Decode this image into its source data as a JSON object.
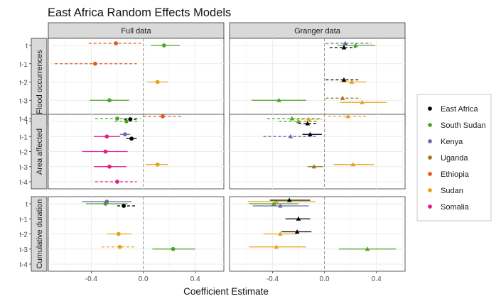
{
  "chart_data": {
    "type": "scatter",
    "title": "East Africa Random Effects Models",
    "xlabel": "Coefficient Estimate",
    "xlim": [
      -0.73,
      0.62
    ],
    "x_ticks": [
      -0.4,
      0.0,
      0.4
    ],
    "x_tick_labels": [
      "-0.4",
      "0.0",
      "0.4"
    ],
    "reference_line_x": 0,
    "grid": true,
    "legend_position": "right",
    "columns": [
      "Full data",
      "Granger data"
    ],
    "rows": [
      "Flood occurrences",
      "Area affected",
      "Cumulative duration"
    ],
    "y_categories": [
      "t",
      "t-1",
      "t-2",
      "t-3",
      "t-4"
    ],
    "legend": [
      {
        "name": "East Africa",
        "color": "#000000"
      },
      {
        "name": "South Sudan",
        "color": "#4da327"
      },
      {
        "name": "Kenya",
        "color": "#7065b0"
      },
      {
        "name": "Uganda",
        "color": "#a0722a"
      },
      {
        "name": "Ethiopia",
        "color": "#e25b1c"
      },
      {
        "name": "Sudan",
        "color": "#e6a21f"
      },
      {
        "name": "Somalia",
        "color": "#e21d88"
      }
    ],
    "panels": [
      {
        "row": 0,
        "col": 0,
        "points": [
          {
            "region": "South Sudan",
            "y": "t",
            "est": 0.16,
            "lo": 0.06,
            "hi": 0.28,
            "shape": "circle",
            "line": "solid"
          },
          {
            "region": "Ethiopia",
            "y": "t",
            "est": -0.21,
            "lo": -0.42,
            "hi": -0.02,
            "shape": "circle",
            "line": "dashed"
          },
          {
            "region": "Ethiopia",
            "y": "t-1",
            "est": -0.37,
            "lo": -0.68,
            "hi": -0.05,
            "shape": "circle",
            "line": "dashed"
          },
          {
            "region": "Sudan",
            "y": "t-2",
            "est": 0.11,
            "lo": 0.03,
            "hi": 0.19,
            "shape": "circle",
            "line": "solid"
          },
          {
            "region": "South Sudan",
            "y": "t-3",
            "est": -0.26,
            "lo": -0.41,
            "hi": -0.11,
            "shape": "circle",
            "line": "solid"
          },
          {
            "region": "South Sudan",
            "y": "t-4",
            "est": -0.2,
            "lo": -0.37,
            "hi": -0.02,
            "shape": "circle",
            "line": "dashed"
          },
          {
            "region": "Ethiopia",
            "y": "t-4",
            "est": 0.15,
            "lo": 0.0,
            "hi": 0.29,
            "shape": "circle",
            "line": "dashed"
          }
        ]
      },
      {
        "row": 0,
        "col": 1,
        "points": [
          {
            "region": "South Sudan",
            "y": "t",
            "est": 0.24,
            "lo": 0.1,
            "hi": 0.39,
            "shape": "triangle",
            "line": "solid"
          },
          {
            "region": "Kenya",
            "y": "t",
            "est": 0.16,
            "lo": 0.01,
            "hi": 0.36,
            "shape": "triangle",
            "line": "dashed"
          },
          {
            "region": "East Africa",
            "y": "t",
            "est": 0.15,
            "lo": 0.04,
            "hi": 0.24,
            "shape": "triangle",
            "line": "dashed"
          },
          {
            "region": "Sudan",
            "y": "t-2",
            "est": 0.21,
            "lo": 0.12,
            "hi": 0.32,
            "shape": "triangle",
            "line": "solid"
          },
          {
            "region": "East Africa",
            "y": "t-2",
            "est": 0.15,
            "lo": 0.01,
            "hi": 0.26,
            "shape": "triangle",
            "line": "dashed"
          },
          {
            "region": "South Sudan",
            "y": "t-3",
            "est": -0.35,
            "lo": -0.56,
            "hi": -0.14,
            "shape": "triangle",
            "line": "solid"
          },
          {
            "region": "Uganda",
            "y": "t-3",
            "est": 0.14,
            "lo": 0.01,
            "hi": 0.28,
            "shape": "triangle",
            "line": "dashed"
          },
          {
            "region": "Sudan",
            "y": "t-3",
            "est": 0.29,
            "lo": 0.12,
            "hi": 0.48,
            "shape": "triangle",
            "line": "solid"
          },
          {
            "region": "South Sudan",
            "y": "t-4",
            "est": -0.25,
            "lo": -0.44,
            "hi": -0.02,
            "shape": "triangle",
            "line": "dashed"
          },
          {
            "region": "Sudan",
            "y": "t-4",
            "est": 0.18,
            "lo": 0.03,
            "hi": 0.32,
            "shape": "triangle",
            "line": "dashed"
          }
        ]
      },
      {
        "row": 1,
        "col": 0,
        "points": [
          {
            "region": "South Sudan",
            "y": "t",
            "est": -0.13,
            "lo": -0.22,
            "hi": -0.04,
            "shape": "circle",
            "line": "dashed"
          },
          {
            "region": "East Africa",
            "y": "t",
            "est": -0.1,
            "lo": -0.15,
            "hi": -0.05,
            "shape": "circle",
            "line": "dashed"
          },
          {
            "region": "Somalia",
            "y": "t-1",
            "est": -0.28,
            "lo": -0.38,
            "hi": -0.18,
            "shape": "circle",
            "line": "solid"
          },
          {
            "region": "Kenya",
            "y": "t-1",
            "est": -0.14,
            "lo": -0.18,
            "hi": -0.1,
            "shape": "circle",
            "line": "solid"
          },
          {
            "region": "East Africa",
            "y": "t-1",
            "est": -0.09,
            "lo": -0.13,
            "hi": -0.05,
            "shape": "circle",
            "line": "solid"
          },
          {
            "region": "Somalia",
            "y": "t-2",
            "est": -0.29,
            "lo": -0.47,
            "hi": -0.12,
            "shape": "circle",
            "line": "solid"
          },
          {
            "region": "Somalia",
            "y": "t-3",
            "est": -0.26,
            "lo": -0.38,
            "hi": -0.13,
            "shape": "circle",
            "line": "solid"
          },
          {
            "region": "Sudan",
            "y": "t-3",
            "est": 0.11,
            "lo": 0.02,
            "hi": 0.19,
            "shape": "circle",
            "line": "solid"
          },
          {
            "region": "Somalia",
            "y": "t-4",
            "est": -0.2,
            "lo": -0.37,
            "hi": -0.05,
            "shape": "circle",
            "line": "dashed"
          }
        ]
      },
      {
        "row": 1,
        "col": 1,
        "points": [
          {
            "region": "South Sudan",
            "y": "t",
            "est": -0.2,
            "lo": -0.35,
            "hi": -0.05,
            "shape": "triangle",
            "line": "dashed"
          },
          {
            "region": "Sudan",
            "y": "t",
            "est": -0.12,
            "lo": -0.22,
            "hi": -0.02,
            "shape": "triangle",
            "line": "dashed"
          },
          {
            "region": "East Africa",
            "y": "t",
            "est": -0.13,
            "lo": -0.2,
            "hi": -0.06,
            "shape": "triangle",
            "line": "dashed"
          },
          {
            "region": "Kenya",
            "y": "t-1",
            "est": -0.26,
            "lo": -0.47,
            "hi": -0.05,
            "shape": "triangle",
            "line": "dashed"
          },
          {
            "region": "East Africa",
            "y": "t-1",
            "est": -0.11,
            "lo": -0.17,
            "hi": -0.02,
            "shape": "triangle",
            "line": "solid"
          },
          {
            "region": "Uganda",
            "y": "t-3",
            "est": -0.08,
            "lo": -0.13,
            "hi": -0.01,
            "shape": "triangle",
            "line": "solid"
          },
          {
            "region": "Sudan",
            "y": "t-3",
            "est": 0.22,
            "lo": 0.07,
            "hi": 0.38,
            "shape": "triangle",
            "line": "solid"
          }
        ]
      },
      {
        "row": 2,
        "col": 0,
        "points": [
          {
            "region": "South Sudan",
            "y": "t",
            "est": -0.29,
            "lo": -0.44,
            "hi": -0.12,
            "shape": "circle",
            "line": "solid"
          },
          {
            "region": "Kenya",
            "y": "t",
            "est": -0.28,
            "lo": -0.47,
            "hi": -0.09,
            "shape": "circle",
            "line": "solid"
          },
          {
            "region": "East Africa",
            "y": "t",
            "est": -0.15,
            "lo": -0.2,
            "hi": -0.06,
            "shape": "circle",
            "line": "dashed"
          },
          {
            "region": "Sudan",
            "y": "t-2",
            "est": -0.19,
            "lo": -0.28,
            "hi": -0.09,
            "shape": "circle",
            "line": "solid"
          },
          {
            "region": "South Sudan",
            "y": "t-3",
            "est": 0.23,
            "lo": 0.07,
            "hi": 0.4,
            "shape": "circle",
            "line": "solid"
          },
          {
            "region": "Sudan",
            "y": "t-3",
            "est": -0.18,
            "lo": -0.32,
            "hi": -0.05,
            "shape": "circle",
            "line": "dashed"
          }
        ]
      },
      {
        "row": 2,
        "col": 1,
        "points": [
          {
            "region": "South Sudan",
            "y": "t",
            "est": -0.39,
            "lo": -0.58,
            "hi": -0.2,
            "shape": "triangle",
            "line": "solid"
          },
          {
            "region": "Sudan",
            "y": "t",
            "est": -0.37,
            "lo": -0.59,
            "hi": -0.07,
            "shape": "triangle",
            "line": "solid"
          },
          {
            "region": "Kenya",
            "y": "t",
            "est": -0.34,
            "lo": -0.55,
            "hi": -0.12,
            "shape": "triangle",
            "line": "solid"
          },
          {
            "region": "East Africa",
            "y": "t",
            "est": -0.27,
            "lo": -0.42,
            "hi": -0.11,
            "shape": "triangle",
            "line": "solid"
          },
          {
            "region": "East Africa",
            "y": "t-1",
            "est": -0.2,
            "lo": -0.3,
            "hi": -0.11,
            "shape": "triangle",
            "line": "solid"
          },
          {
            "region": "Sudan",
            "y": "t-2",
            "est": -0.34,
            "lo": -0.47,
            "hi": -0.21,
            "shape": "triangle",
            "line": "solid"
          },
          {
            "region": "East Africa",
            "y": "t-2",
            "est": -0.21,
            "lo": -0.33,
            "hi": -0.1,
            "shape": "triangle",
            "line": "solid"
          },
          {
            "region": "South Sudan",
            "y": "t-3",
            "est": 0.33,
            "lo": 0.11,
            "hi": 0.55,
            "shape": "triangle",
            "line": "solid"
          },
          {
            "region": "Sudan",
            "y": "t-3",
            "est": -0.37,
            "lo": -0.58,
            "hi": -0.14,
            "shape": "triangle",
            "line": "solid"
          }
        ]
      }
    ]
  }
}
